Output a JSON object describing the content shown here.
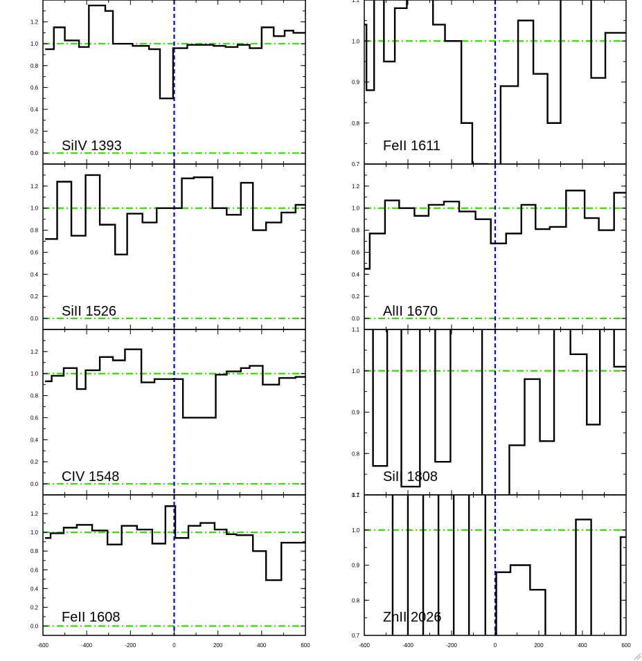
{
  "colors": {
    "spectrum": "#000000",
    "continuum": "#33dd00",
    "zero_velocity": "#0000dd",
    "axes": "#000000",
    "background": "#ffffff"
  },
  "icons": {
    "resize_grip": "resize-grip-icon"
  },
  "chart_data": [
    {
      "type": "line",
      "step": true,
      "column": "left",
      "row": 0,
      "label": "SiIV 1393",
      "xlim": [
        -600,
        600
      ],
      "ylim": [
        -0.1,
        1.4
      ],
      "yticks": [
        0.0,
        0.2,
        0.4,
        0.6,
        0.8,
        1.0,
        1.2
      ],
      "ytick_labels": [
        "0.0",
        "0.2",
        "0.4",
        "0.6",
        "0.8",
        "1.0",
        "1.2"
      ],
      "continuum_levels": [
        0.0,
        1.0
      ],
      "x": [
        -590,
        -550,
        -500,
        -435,
        -390,
        -315,
        -280,
        -190,
        -115,
        -65,
        -5,
        60,
        110,
        180,
        235,
        290,
        345,
        400,
        455,
        505,
        545,
        585
      ],
      "y": [
        0.95,
        1.15,
        1.03,
        0.97,
        1.35,
        1.3,
        1.0,
        0.98,
        0.95,
        0.5,
        0.96,
        0.99,
        0.99,
        0.98,
        0.97,
        0.99,
        0.96,
        1.15,
        1.07,
        1.12,
        1.1,
        1.1
      ]
    },
    {
      "type": "line",
      "step": true,
      "column": "left",
      "row": 1,
      "label": "SiII 1526",
      "xlim": [
        -600,
        600
      ],
      "ylim": [
        -0.1,
        1.4
      ],
      "yticks": [
        0.0,
        0.2,
        0.4,
        0.6,
        0.8,
        1.0,
        1.2
      ],
      "ytick_labels": [
        "0.0",
        "0.2",
        "0.4",
        "0.6",
        "0.8",
        "1.0",
        "1.2"
      ],
      "continuum_levels": [
        0.0,
        1.0
      ],
      "x": [
        -590,
        -535,
        -470,
        -405,
        -340,
        -270,
        -215,
        -145,
        -80,
        -20,
        35,
        90,
        175,
        240,
        305,
        360,
        420,
        490,
        555,
        590
      ],
      "y": [
        0.72,
        1.24,
        0.75,
        1.3,
        0.85,
        0.58,
        0.95,
        0.87,
        1.0,
        1.0,
        1.27,
        1.28,
        1.0,
        0.94,
        1.23,
        0.8,
        0.87,
        0.96,
        1.03,
        1.03
      ]
    },
    {
      "type": "line",
      "step": true,
      "column": "left",
      "row": 2,
      "label": "CIV 1548",
      "xlim": [
        -600,
        600
      ],
      "ylim": [
        -0.1,
        1.4
      ],
      "yticks": [
        0.0,
        0.2,
        0.4,
        0.6,
        0.8,
        1.0,
        1.2
      ],
      "ytick_labels": [
        "0.0",
        "0.2",
        "0.4",
        "0.6",
        "0.8",
        "1.0",
        "1.2"
      ],
      "continuum_levels": [
        0.0,
        1.0
      ],
      "x": [
        -590,
        -560,
        -505,
        -445,
        -405,
        -340,
        -280,
        -225,
        -150,
        -90,
        -25,
        40,
        115,
        190,
        240,
        305,
        345,
        405,
        480,
        555
      ],
      "y": [
        0.93,
        0.98,
        1.05,
        0.86,
        1.03,
        1.15,
        1.12,
        1.22,
        0.92,
        0.95,
        0.95,
        0.6,
        0.6,
        0.99,
        1.02,
        1.05,
        1.07,
        0.9,
        0.96,
        0.97
      ]
    },
    {
      "type": "line",
      "step": true,
      "column": "left",
      "row": 3,
      "label": "FeII 1608",
      "xlim": [
        -600,
        600
      ],
      "ylim": [
        -0.1,
        1.4
      ],
      "yticks": [
        0.0,
        0.2,
        0.4,
        0.6,
        0.8,
        1.0,
        1.2
      ],
      "ytick_labels": [
        "0.0",
        "0.2",
        "0.4",
        "0.6",
        "0.8",
        "1.0",
        "1.2"
      ],
      "continuum_levels": [
        0.0,
        1.0
      ],
      "x": [
        -590,
        -565,
        -505,
        -445,
        -375,
        -305,
        -240,
        -170,
        -100,
        -40,
        5,
        65,
        120,
        185,
        240,
        285,
        360,
        420,
        490,
        550
      ],
      "y": [
        0.94,
        0.99,
        1.05,
        1.08,
        1.02,
        0.87,
        1.07,
        1.03,
        0.88,
        1.28,
        0.94,
        1.07,
        1.1,
        1.03,
        0.98,
        0.97,
        0.8,
        0.49,
        0.89,
        0.89
      ]
    },
    {
      "type": "line",
      "step": true,
      "column": "right",
      "row": 0,
      "label": "FeII 1611",
      "xlim": [
        -600,
        600
      ],
      "ylim": [
        0.7,
        1.1
      ],
      "yticks": [
        0.7,
        0.8,
        0.9,
        1.0,
        1.1
      ],
      "ytick_labels": [
        "0.7",
        "0.8",
        "0.9",
        "1.0",
        "1.1"
      ],
      "continuum_levels": [
        1.0
      ],
      "x": [
        -600,
        -590,
        -555,
        -510,
        -460,
        -405,
        -340,
        -285,
        -230,
        -155,
        -105,
        -35,
        25,
        105,
        175,
        240,
        300,
        370,
        440,
        505,
        580,
        600
      ],
      "y": [
        1.04,
        0.88,
        1.2,
        0.95,
        1.08,
        1.2,
        1.2,
        1.04,
        1.0,
        0.8,
        0.7,
        0.55,
        0.89,
        1.05,
        0.92,
        0.8,
        1.2,
        1.2,
        0.91,
        1.02,
        1.02,
        1.02
      ]
    },
    {
      "type": "line",
      "step": true,
      "column": "right",
      "row": 1,
      "label": "AlII 1670",
      "xlim": [
        -600,
        600
      ],
      "ylim": [
        -0.1,
        1.4
      ],
      "yticks": [
        0.0,
        0.2,
        0.4,
        0.6,
        0.8,
        1.0,
        1.2
      ],
      "ytick_labels": [
        "0.0",
        "0.2",
        "0.4",
        "0.6",
        "0.8",
        "1.0",
        "1.2"
      ],
      "continuum_levels": [
        0.0,
        1.0
      ],
      "x": [
        -600,
        -575,
        -505,
        -440,
        -370,
        -305,
        -235,
        -165,
        -90,
        -20,
        50,
        120,
        185,
        250,
        325,
        410,
        475,
        545,
        590
      ],
      "y": [
        0.45,
        0.77,
        1.07,
        1.0,
        0.93,
        1.03,
        1.06,
        0.97,
        0.9,
        0.68,
        0.77,
        1.03,
        0.81,
        0.83,
        1.16,
        0.91,
        0.8,
        1.14,
        1.14
      ]
    },
    {
      "type": "line",
      "step": true,
      "column": "right",
      "row": 2,
      "label": "SiII 1808",
      "xlim": [
        -600,
        600
      ],
      "ylim": [
        0.7,
        1.1
      ],
      "yticks": [
        0.7,
        0.8,
        0.9,
        1.0,
        1.1
      ],
      "ytick_labels": [
        "0.7",
        "0.8",
        "0.9",
        "1.0",
        "1.1"
      ],
      "continuum_levels": [
        1.0
      ],
      "x": [
        -600,
        -560,
        -495,
        -430,
        -345,
        -275,
        -205,
        -135,
        -60,
        0,
        65,
        135,
        205,
        270,
        345,
        420,
        480,
        545,
        580
      ],
      "y": [
        1.2,
        0.77,
        1.2,
        0.72,
        1.2,
        0.78,
        1.2,
        1.2,
        0.6,
        0.6,
        0.82,
        0.98,
        0.83,
        1.2,
        1.04,
        0.87,
        1.2,
        1.01,
        1.01
      ]
    },
    {
      "type": "line",
      "step": true,
      "column": "right",
      "row": 3,
      "label": "ZnII 2026",
      "xlim": [
        -600,
        600
      ],
      "ylim": [
        0.7,
        1.1
      ],
      "yticks": [
        0.7,
        0.8,
        0.9,
        1.0,
        1.1
      ],
      "ytick_labels": [
        "0.7",
        "0.8",
        "0.9",
        "1.0",
        "1.1"
      ],
      "continuum_levels": [
        1.0
      ],
      "x": [
        -600,
        -470,
        -400,
        -330,
        -260,
        -190,
        -120,
        -45,
        5,
        70,
        160,
        230,
        370,
        440,
        575,
        595
      ],
      "y": [
        1.2,
        0.6,
        1.2,
        0.6,
        1.2,
        0.6,
        1.2,
        0.6,
        0.88,
        0.9,
        0.83,
        0.6,
        1.03,
        0.6,
        0.98,
        0.98
      ]
    }
  ],
  "x_axis": {
    "left_column": {
      "ticks": [
        -600,
        -400,
        -200,
        0,
        200,
        400,
        600
      ],
      "tick_labels": [
        "-600",
        "-400",
        "-200",
        "0",
        "200",
        "400",
        "600"
      ]
    },
    "right_column": {
      "ticks": [
        -600,
        -400,
        -200,
        0,
        200,
        400,
        600
      ],
      "tick_labels": [
        "-600",
        "-400",
        "-200",
        "0",
        "200",
        "400",
        "600"
      ]
    }
  }
}
